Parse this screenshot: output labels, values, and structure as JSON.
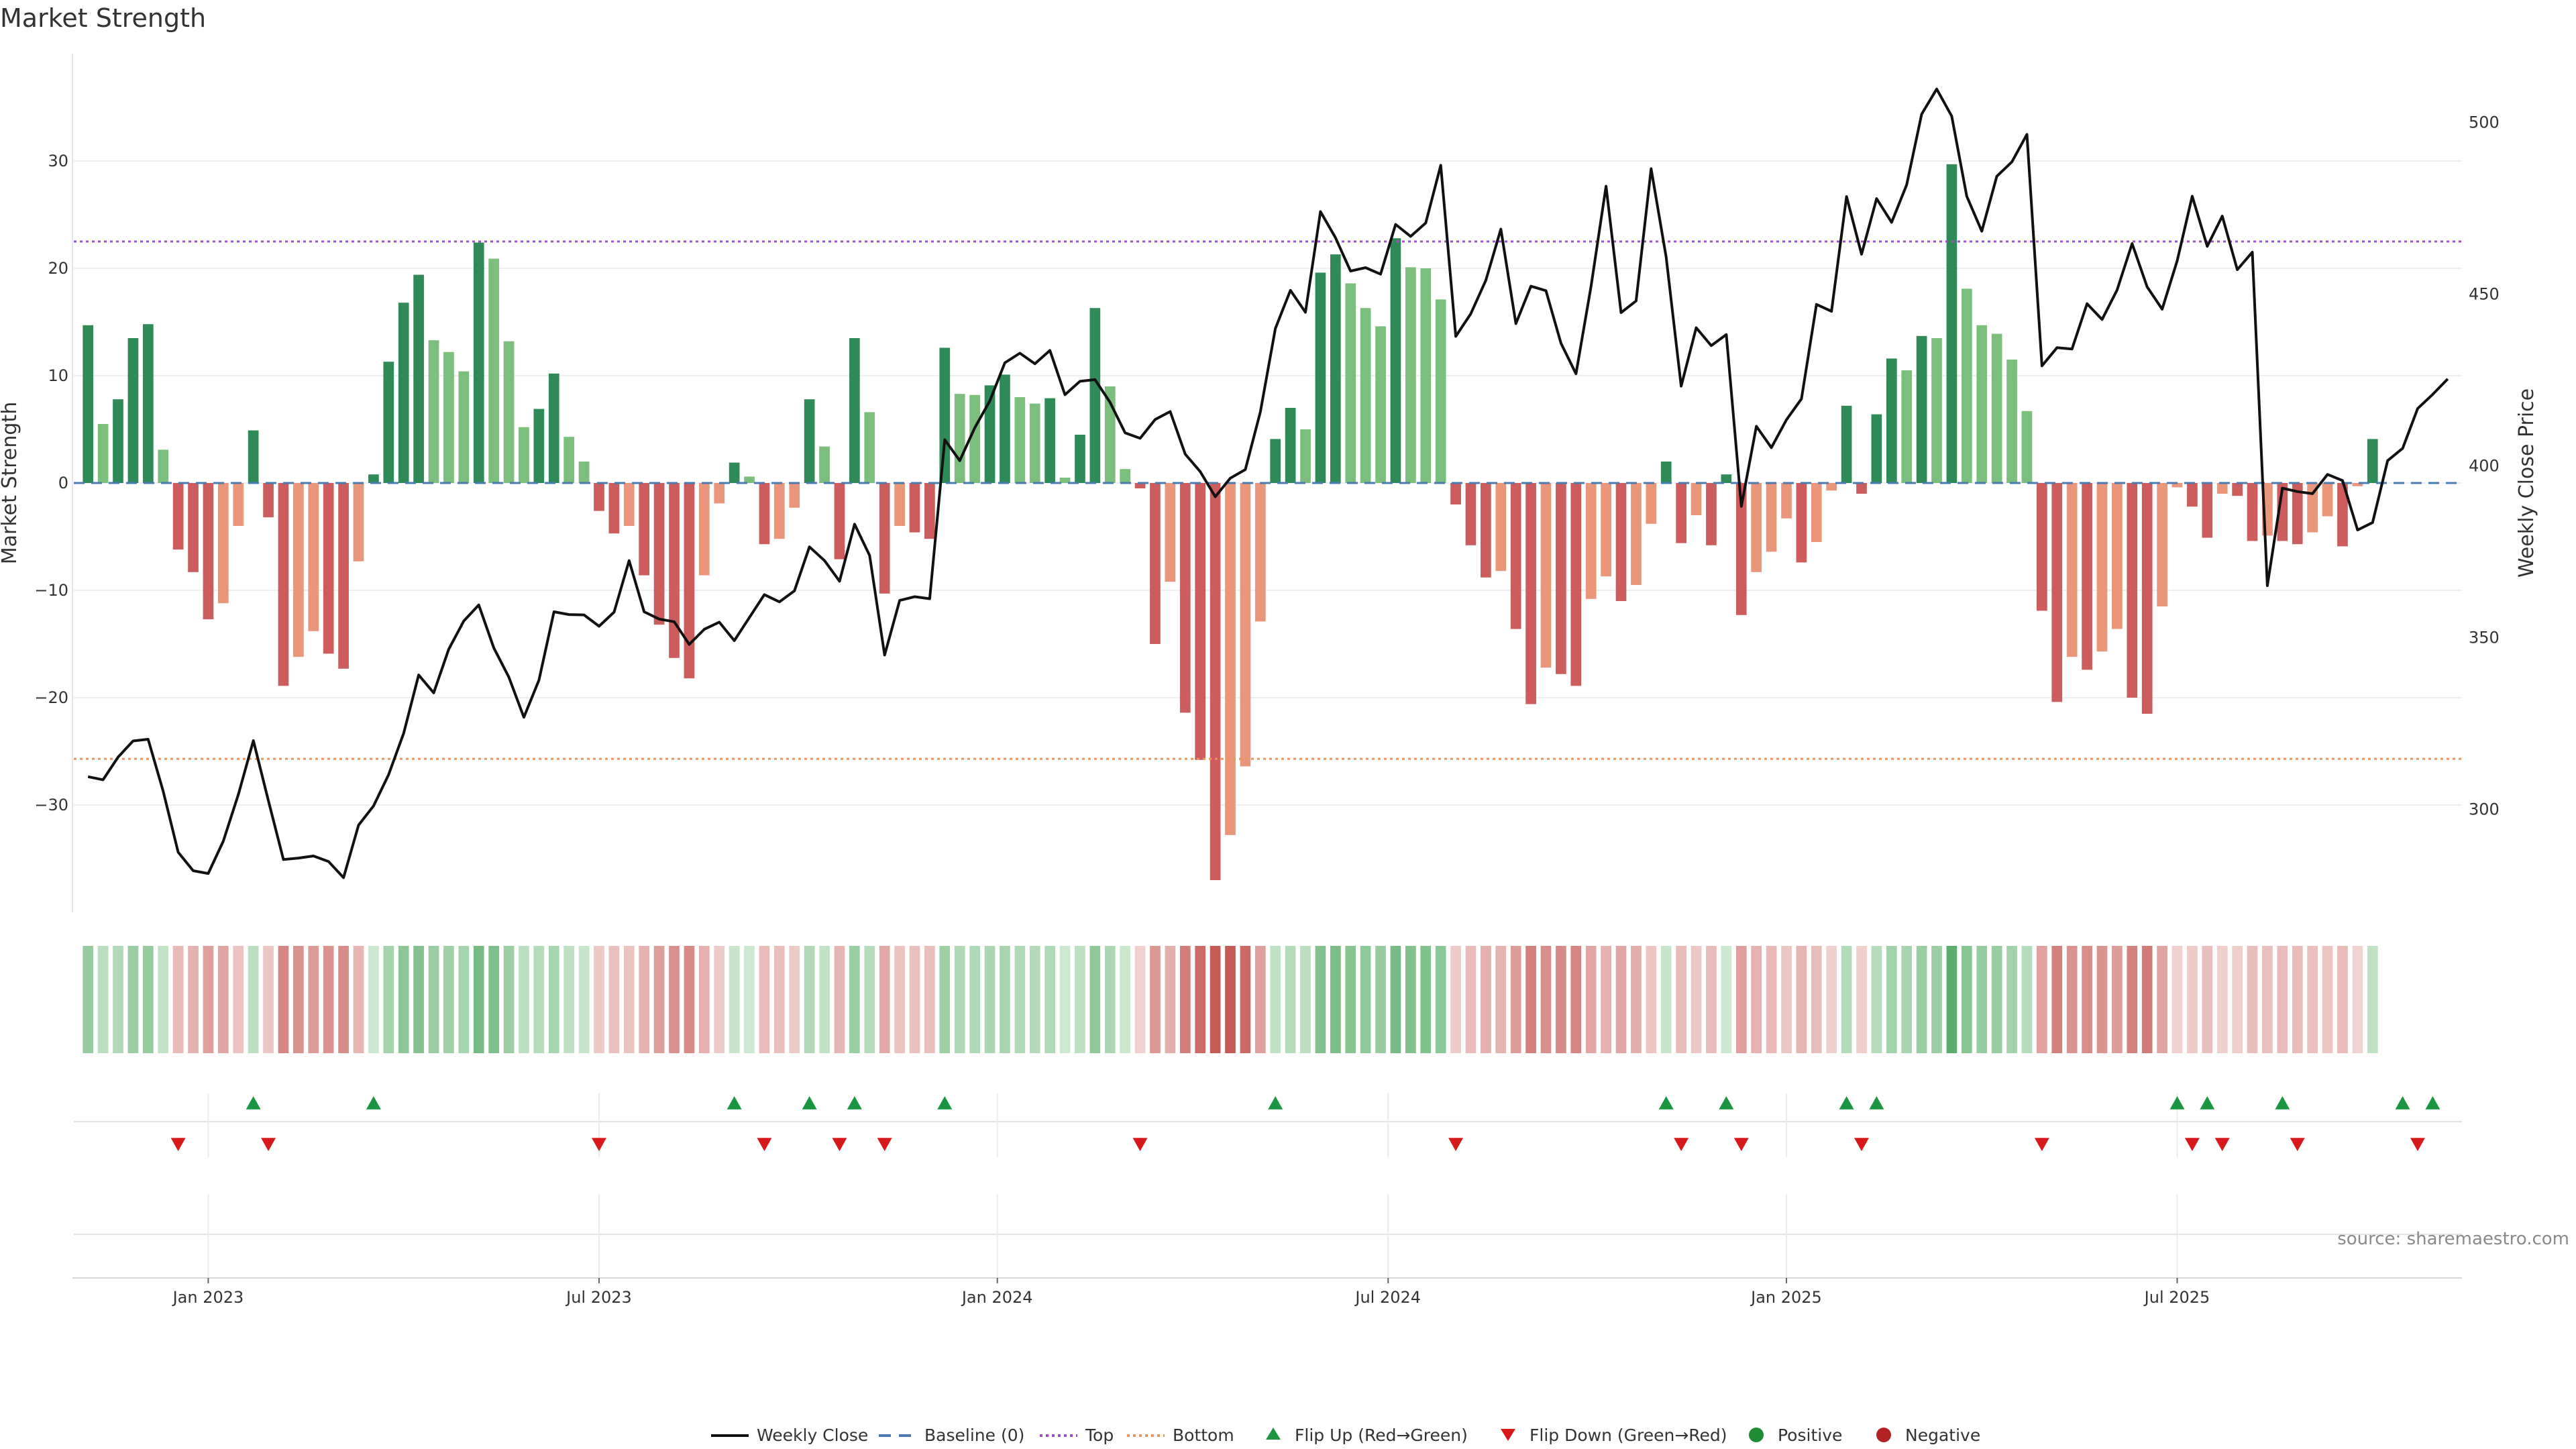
{
  "chart_data": {
    "type": "bar+line",
    "title": "Market Strength",
    "source": "source: sharemaestro.com",
    "ylabel_left": "Market Strength",
    "ylabel_right": "Weekly Close Price",
    "ylim_left": [
      -40,
      40
    ],
    "yticks_left": [
      30,
      20,
      10,
      0,
      -10,
      -20,
      -30
    ],
    "ytick_labels_left": [
      "30",
      "20",
      "10",
      "0",
      "−10",
      "−20",
      "−30"
    ],
    "ylim_right": [
      270,
      520
    ],
    "yticks_right": [
      500,
      450,
      400,
      350,
      300
    ],
    "ytick_labels_right": [
      "500",
      "450",
      "400",
      "350",
      "300"
    ],
    "x_start_week": 0,
    "weeks": 158,
    "x_tick_labels": [
      {
        "week": 8.5,
        "label": "Jan 2023"
      },
      {
        "week": 34.5,
        "label": "Jul 2023"
      },
      {
        "week": 61,
        "label": "Jan 2024"
      },
      {
        "week": 87,
        "label": "Jul 2024"
      },
      {
        "week": 113.5,
        "label": "Jan 2025"
      },
      {
        "week": 139.5,
        "label": "Jul 2025"
      }
    ],
    "top_level": 22.5,
    "bottom_level": -25.7,
    "baseline": 0,
    "strength": [
      14.7,
      5.5,
      7.8,
      13.5,
      14.8,
      3.1,
      -6.2,
      -8.3,
      -12.7,
      -11.2,
      -4.0,
      4.9,
      -3.2,
      -18.9,
      -16.2,
      -13.8,
      -15.9,
      -17.3,
      -7.3,
      0.8,
      11.3,
      16.8,
      19.4,
      13.3,
      12.2,
      10.4,
      22.4,
      20.9,
      13.2,
      5.2,
      6.9,
      10.2,
      4.3,
      2.0,
      -2.6,
      -4.7,
      -4.0,
      -8.6,
      -13.2,
      -16.3,
      -18.2,
      -8.6,
      -1.9,
      1.9,
      0.6,
      -5.7,
      -5.2,
      -2.3,
      7.8,
      3.4,
      -7.1,
      13.5,
      6.6,
      -10.3,
      -4.0,
      -4.6,
      -5.2,
      12.6,
      8.3,
      8.2,
      9.1,
      10.1,
      8.0,
      7.4,
      7.9,
      0.5,
      4.5,
      16.3,
      9.0,
      1.3,
      -0.5,
      -15.0,
      -9.2,
      -21.4,
      -25.8,
      -37.0,
      -32.8,
      -26.4,
      -12.9,
      4.1,
      7.0,
      5.0,
      19.6,
      21.3,
      18.6,
      16.3,
      14.6,
      22.8,
      20.1,
      20.0,
      17.1,
      -2.0,
      -5.8,
      -8.8,
      -8.2,
      -13.6,
      -20.6,
      -17.2,
      -17.8,
      -18.9,
      -10.8,
      -8.7,
      -11.0,
      -9.5,
      -3.8,
      2.0,
      -5.6,
      -3.0,
      -5.8,
      0.8,
      -12.3,
      -8.3,
      -6.4,
      -3.3,
      -7.4,
      -5.5,
      -0.7,
      7.2,
      -1.0,
      6.4,
      11.6,
      10.5,
      13.7,
      13.5,
      29.7,
      18.1,
      14.7,
      13.9,
      11.5,
      6.7,
      -11.9,
      -20.4,
      -16.2,
      -17.4,
      -15.7,
      -13.6,
      -20.0,
      -21.5,
      -11.5,
      -0.4,
      -2.2,
      -5.1,
      -1.0,
      -1.2,
      -5.4,
      -4.9,
      -5.4,
      -5.7,
      -4.6,
      -3.1,
      -5.9,
      -0.3,
      4.1
    ],
    "weekly_close": [
      309.5,
      308.6,
      315.2,
      319.9,
      320.4,
      305.3,
      287.5,
      282.1,
      281.3,
      290.7,
      304.3,
      320.0,
      302.5,
      285.4,
      285.8,
      286.4,
      284.8,
      280.1,
      295.4,
      301.0,
      310.1,
      322.1,
      339.1,
      333.9,
      346.6,
      354.8,
      359.5,
      347.0,
      338.5,
      326.8,
      337.6,
      357.5,
      356.7,
      356.6,
      353.3,
      357.4,
      372.4,
      357.5,
      355.4,
      354.6,
      348.0,
      352.4,
      354.5,
      349.1,
      355.8,
      362.5,
      360.4,
      363.6,
      376.4,
      372.4,
      366.4,
      383.0,
      373.9,
      344.9,
      360.8,
      361.9,
      361.3,
      407.6,
      401.5,
      411.1,
      418.9,
      430.0,
      432.8,
      429.7,
      433.6,
      420.7,
      424.6,
      425.1,
      418.5,
      409.6,
      408.0,
      413.5,
      415.8,
      403.4,
      398.3,
      391.0,
      396.4,
      398.9,
      415.7,
      440.0,
      451.1,
      444.7,
      474.0,
      466.4,
      456.7,
      457.7,
      455.8,
      470.3,
      466.8,
      470.7,
      487.5,
      437.7,
      444.3,
      454.0,
      468.9,
      441.4,
      452.3,
      451.0,
      435.7,
      426.8,
      452.2,
      481.4,
      444.6,
      448.0,
      486.5,
      460.8,
      423.2,
      440.2,
      435.0,
      438.2,
      388.2,
      411.5,
      405.3,
      413.4,
      419.5,
      447.0,
      445.0,
      478.4,
      461.6,
      477.8,
      470.9,
      481.8,
      502.4,
      509.7,
      501.8,
      478.5,
      468.3,
      484.3,
      488.5,
      496.5,
      429.1,
      434.4,
      434.0,
      447.2,
      442.6,
      451.2,
      464.7,
      452.1,
      445.6,
      459.7,
      478.5,
      463.9,
      472.7,
      457.1,
      462.2,
      365.1,
      393.5,
      392.5,
      391.9,
      397.5,
      395.7,
      381.3,
      383.5,
      401.5,
      405.1,
      416.7,
      420.8,
      425.3
    ],
    "flip_up_weeks": [
      11,
      19,
      43,
      48,
      51,
      57,
      79,
      105,
      109,
      117,
      119,
      139,
      141,
      146,
      154,
      156
    ],
    "flip_down_weeks": [
      6,
      12,
      34,
      45,
      50,
      53,
      70,
      91,
      106,
      110,
      118,
      130,
      140,
      142,
      147,
      155
    ],
    "colors": {
      "pos_strong": "#2e8b57",
      "pos_light": "#7cbf7c",
      "neg_strong": "#cd5c5c",
      "neg_light": "#e9967a",
      "line": "#111111",
      "baseline": "#4a7bb0",
      "top": "#a14fc9",
      "bottom": "#e8955f",
      "flip_up": "#1a9641",
      "flip_down": "#d7191c",
      "dot_pos": "#1e8c32",
      "dot_neg": "#b22222"
    },
    "legend": [
      {
        "label": "Weekly Close",
        "kind": "line"
      },
      {
        "label": "Baseline (0)",
        "kind": "dashed"
      },
      {
        "label": "Top",
        "kind": "dotted-top"
      },
      {
        "label": "Bottom",
        "kind": "dotted-bottom"
      },
      {
        "label": "Flip Up (Red→Green)",
        "kind": "tri-up"
      },
      {
        "label": "Flip Down (Green→Red)",
        "kind": "tri-down"
      },
      {
        "label": "Positive",
        "kind": "dot-pos"
      },
      {
        "label": "Negative",
        "kind": "dot-neg"
      }
    ]
  }
}
